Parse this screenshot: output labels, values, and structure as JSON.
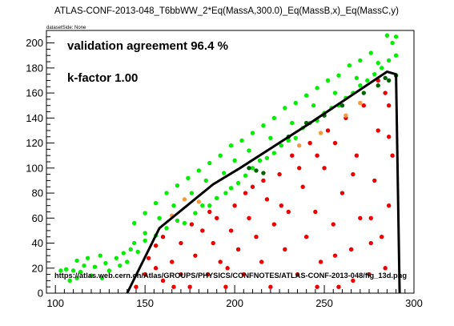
{
  "chart_data": {
    "type": "scatter",
    "title": "ATLAS-CONF-2013-048_T6bbWW_2*Eq(MassA,300.0)_Eq(MassB,x)_Eq(MassC,y)",
    "dataset_label": "datasetSide: None",
    "xlim": [
      95,
      300
    ],
    "ylim": [
      0,
      210
    ],
    "x_ticks": [
      100,
      150,
      200,
      250,
      300
    ],
    "y_ticks": [
      0,
      20,
      40,
      60,
      80,
      100,
      120,
      140,
      160,
      180,
      200
    ],
    "grid": false,
    "annotations": {
      "agreement": "validation agreement 96.4 %",
      "kfactor": "k-factor 1.00",
      "url": "https://atlas.web.cern.ch/Atlas/GROUPS/PHYSICS/CONFNOTES/ATLAS-CONF-2013-048/fig_13d.png"
    },
    "colors": {
      "allowed": "#00ee00",
      "excluded": "#ee0000",
      "excluded_disagree": "#f59a3c",
      "allowed_disagree": "#006400",
      "curve": "#000000"
    },
    "exclusion_curve": [
      [
        140,
        0
      ],
      [
        158,
        52
      ],
      [
        188,
        87
      ],
      [
        203,
        100
      ],
      [
        240,
        134
      ],
      [
        285,
        177
      ],
      [
        290,
        175
      ],
      [
        292,
        0
      ]
    ],
    "series": [
      {
        "points": [
          [
            103,
            18
          ],
          [
            106,
            19
          ],
          [
            110,
            18
          ],
          [
            114,
            17
          ],
          [
            108,
            10
          ],
          [
            112,
            12
          ],
          [
            120,
            14
          ],
          [
            126,
            12
          ],
          [
            116,
            22
          ],
          [
            122,
            21
          ],
          [
            130,
            18
          ],
          [
            125,
            30
          ],
          [
            136,
            22
          ],
          [
            140,
            25
          ],
          [
            118,
            28
          ],
          [
            112,
            26
          ],
          [
            128,
            24
          ],
          [
            134,
            28
          ],
          [
            142,
            35
          ],
          [
            146,
            33
          ],
          [
            150,
            42
          ],
          [
            144,
            40
          ],
          [
            138,
            32
          ],
          [
            150,
            48
          ],
          [
            156,
            46
          ],
          [
            162,
            52
          ],
          [
            168,
            58
          ],
          [
            172,
            56
          ],
          [
            178,
            64
          ],
          [
            182,
            70
          ],
          [
            186,
            70
          ],
          [
            190,
            76
          ],
          [
            195,
            80
          ],
          [
            198,
            84
          ],
          [
            202,
            88
          ],
          [
            206,
            94
          ],
          [
            210,
            100
          ],
          [
            214,
            106
          ],
          [
            218,
            108
          ],
          [
            222,
            112
          ],
          [
            226,
            118
          ],
          [
            230,
            122
          ],
          [
            234,
            124
          ],
          [
            238,
            132
          ],
          [
            242,
            136
          ],
          [
            246,
            138
          ],
          [
            250,
            144
          ],
          [
            254,
            148
          ],
          [
            258,
            150
          ],
          [
            262,
            156
          ],
          [
            266,
            160
          ],
          [
            270,
            166
          ],
          [
            274,
            170
          ],
          [
            278,
            175
          ],
          [
            282,
            180
          ],
          [
            286,
            186
          ],
          [
            290,
            190
          ],
          [
            288,
            200
          ],
          [
            285,
            206
          ],
          [
            290,
            205
          ],
          [
            276,
            192
          ],
          [
            270,
            186
          ],
          [
            264,
            182
          ],
          [
            258,
            174
          ],
          [
            252,
            170
          ],
          [
            246,
            164
          ],
          [
            240,
            158
          ],
          [
            234,
            152
          ],
          [
            228,
            148
          ],
          [
            222,
            140
          ],
          [
            216,
            134
          ],
          [
            210,
            128
          ],
          [
            204,
            122
          ],
          [
            198,
            118
          ],
          [
            192,
            110
          ],
          [
            186,
            104
          ],
          [
            180,
            98
          ],
          [
            174,
            92
          ],
          [
            168,
            86
          ],
          [
            162,
            80
          ],
          [
            156,
            72
          ],
          [
            150,
            64
          ],
          [
            144,
            56
          ],
          [
            158,
            60
          ],
          [
            166,
            70
          ],
          [
            176,
            80
          ],
          [
            184,
            90
          ],
          [
            194,
            96
          ],
          [
            200,
            106
          ],
          [
            208,
            114
          ],
          [
            220,
            124
          ],
          [
            232,
            136
          ],
          [
            244,
            150
          ],
          [
            256,
            160
          ],
          [
            268,
            172
          ],
          [
            280,
            184
          ]
        ],
        "type": "allowed"
      },
      {
        "points": [
          [
            145,
            5
          ],
          [
            150,
            15
          ],
          [
            152,
            28
          ],
          [
            156,
            38
          ],
          [
            160,
            10
          ],
          [
            160,
            45
          ],
          [
            165,
            25
          ],
          [
            170,
            15
          ],
          [
            170,
            40
          ],
          [
            175,
            5
          ],
          [
            178,
            30
          ],
          [
            182,
            50
          ],
          [
            185,
            15
          ],
          [
            188,
            40
          ],
          [
            190,
            60
          ],
          [
            192,
            25
          ],
          [
            195,
            5
          ],
          [
            198,
            50
          ],
          [
            200,
            70
          ],
          [
            202,
            35
          ],
          [
            205,
            15
          ],
          [
            208,
            60
          ],
          [
            210,
            85
          ],
          [
            212,
            45
          ],
          [
            215,
            25
          ],
          [
            218,
            75
          ],
          [
            220,
            5
          ],
          [
            222,
            55
          ],
          [
            225,
            95
          ],
          [
            228,
            35
          ],
          [
            230,
            65
          ],
          [
            232,
            110
          ],
          [
            235,
            15
          ],
          [
            238,
            85
          ],
          [
            240,
            45
          ],
          [
            242,
            120
          ],
          [
            245,
            65
          ],
          [
            248,
            25
          ],
          [
            250,
            100
          ],
          [
            252,
            130
          ],
          [
            255,
            55
          ],
          [
            258,
            5
          ],
          [
            260,
            80
          ],
          [
            262,
            140
          ],
          [
            265,
            35
          ],
          [
            268,
            110
          ],
          [
            270,
            60
          ],
          [
            272,
            150
          ],
          [
            275,
            15
          ],
          [
            278,
            90
          ],
          [
            280,
            130
          ],
          [
            282,
            45
          ],
          [
            284,
            160
          ],
          [
            286,
            70
          ],
          [
            288,
            110
          ],
          [
            284,
            20
          ],
          [
            276,
            40
          ],
          [
            266,
            95
          ],
          [
            256,
            120
          ],
          [
            246,
            110
          ],
          [
            236,
            100
          ],
          [
            226,
            70
          ],
          [
            216,
            90
          ],
          [
            206,
            80
          ],
          [
            196,
            20
          ],
          [
            186,
            65
          ],
          [
            176,
            55
          ],
          [
            166,
            5
          ],
          [
            156,
            20
          ],
          [
            246,
            5
          ],
          [
            256,
            30
          ],
          [
            266,
            10
          ],
          [
            276,
            60
          ],
          [
            286,
            150
          ],
          [
            280,
            170
          ],
          [
            286,
            125
          ]
        ],
        "type": "excluded"
      },
      {
        "points": [
          [
            165,
            62
          ],
          [
            172,
            75
          ],
          [
            180,
            73
          ],
          [
            236,
            118
          ],
          [
            248,
            128
          ],
          [
            262,
            142
          ],
          [
            270,
            152
          ]
        ],
        "type": "excluded_disagree"
      },
      {
        "points": [
          [
            208,
            100
          ],
          [
            212,
            98
          ],
          [
            216,
            96
          ],
          [
            230,
            125
          ],
          [
            240,
            136
          ],
          [
            250,
            142
          ],
          [
            260,
            150
          ],
          [
            272,
            160
          ],
          [
            280,
            166
          ],
          [
            286,
            170
          ],
          [
            290,
            174
          ],
          [
            284,
            172
          ]
        ],
        "type": "allowed_disagree"
      }
    ]
  }
}
